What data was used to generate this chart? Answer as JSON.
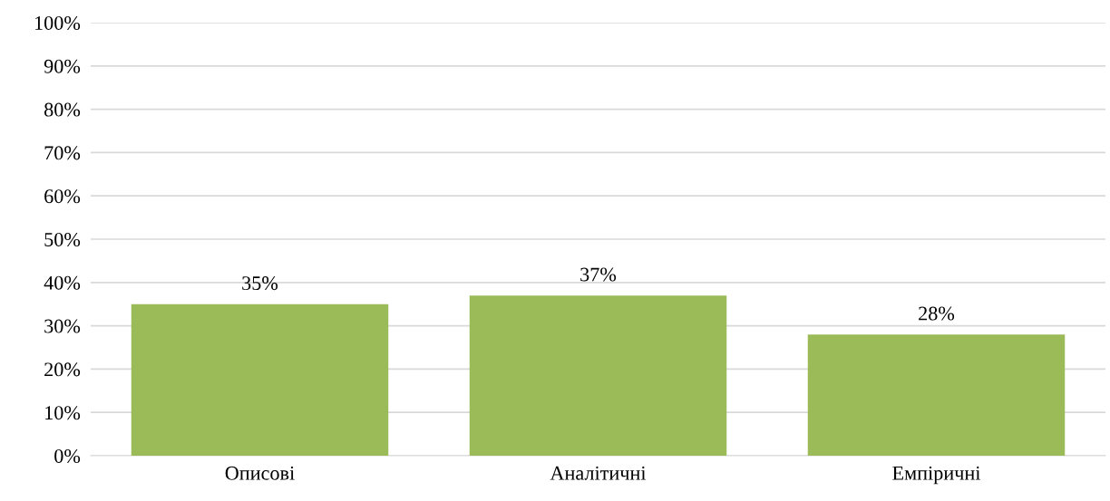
{
  "chart_data": {
    "type": "bar",
    "categories": [
      "Описові",
      "Аналітичні",
      "Емпіричні"
    ],
    "values": [
      35,
      37,
      28
    ],
    "color": "#9bbb59",
    "value_labels": [
      "35%",
      "37%",
      "28%"
    ],
    "ylim": [
      0,
      100
    ],
    "yticks": [
      {
        "value": 0,
        "label": "0%"
      },
      {
        "value": 10,
        "label": "10%"
      },
      {
        "value": 20,
        "label": "20%"
      },
      {
        "value": 30,
        "label": "30%"
      },
      {
        "value": 40,
        "label": "40%"
      },
      {
        "value": 50,
        "label": "50%"
      },
      {
        "value": 60,
        "label": "60%"
      },
      {
        "value": 70,
        "label": "70%"
      },
      {
        "value": 80,
        "label": "80%"
      },
      {
        "value": 90,
        "label": "90%"
      },
      {
        "value": 100,
        "label": "100%"
      }
    ],
    "grid": "y"
  }
}
